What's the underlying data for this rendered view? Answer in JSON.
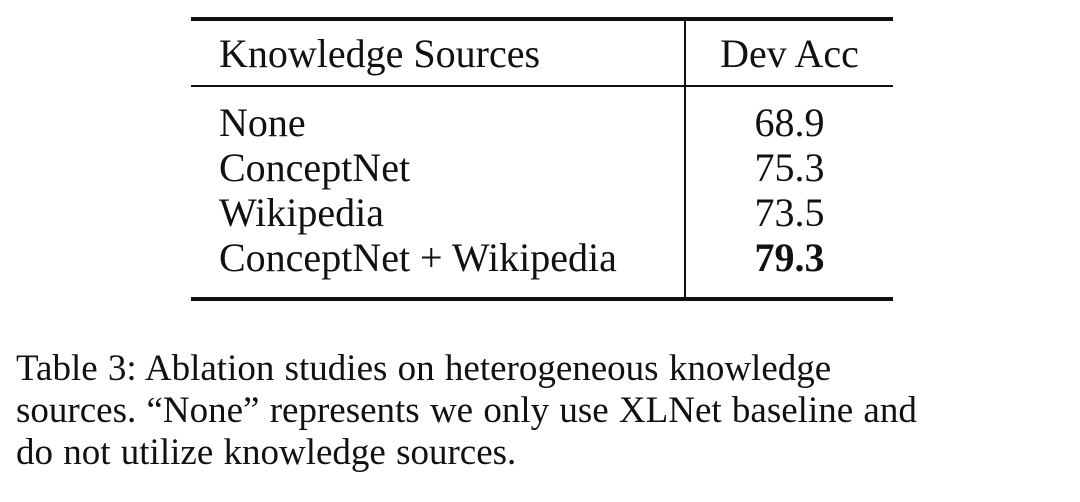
{
  "table": {
    "headers": [
      "Knowledge Sources",
      "Dev Acc"
    ],
    "rows": [
      {
        "source": "None",
        "dev_acc": "68.9",
        "bold": false
      },
      {
        "source": "ConceptNet",
        "dev_acc": "75.3",
        "bold": false
      },
      {
        "source": "Wikipedia",
        "dev_acc": "73.5",
        "bold": false
      },
      {
        "source": "ConceptNet + Wikipedia",
        "dev_acc": "79.3",
        "bold": true
      }
    ]
  },
  "caption": {
    "line1": "Table 3: Ablation studies on heterogeneous knowledge",
    "line2": "sources. “None” represents we only use XLNet baseline and",
    "line3": "do not utilize knowledge sources."
  },
  "chart_data": {
    "type": "table",
    "columns": [
      "Knowledge Sources",
      "Dev Acc"
    ],
    "rows": [
      [
        "None",
        68.9
      ],
      [
        "ConceptNet",
        75.3
      ],
      [
        "Wikipedia",
        73.5
      ],
      [
        "ConceptNet + Wikipedia",
        79.3
      ]
    ],
    "title": "Table 3: Ablation studies on heterogeneous knowledge sources. “None” represents we only use XLNet baseline and do not utilize knowledge sources."
  }
}
